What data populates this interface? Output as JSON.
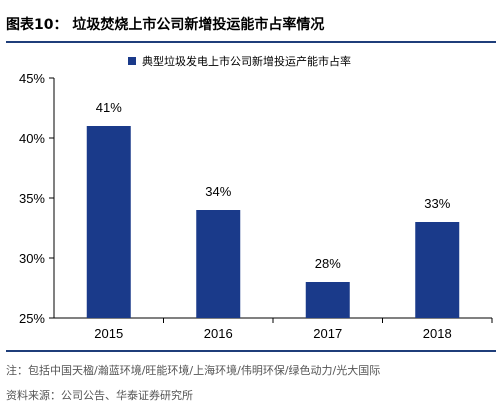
{
  "figure": {
    "title": "图表10：  垃圾焚烧上市公司新增投运能市占率情况",
    "note": "注：包括中国天楹/瀚蓝环境/旺能环境/上海环境/伟明环保/绿色动力/光大国际",
    "source": "资料来源：公司公告、华泰证券研究所"
  },
  "colors": {
    "bar": "#1a3a8a",
    "rule": "#1f3e7a",
    "axis": "#000000"
  },
  "chart_data": {
    "type": "bar",
    "title": "",
    "xlabel": "",
    "ylabel": "",
    "categories": [
      "2015",
      "2016",
      "2017",
      "2018"
    ],
    "series": [
      {
        "name": "典型垃圾发电上市公司新增投运产能市占率",
        "values": [
          41,
          34,
          28,
          33
        ],
        "data_labels": [
          "41%",
          "34%",
          "28%",
          "33%"
        ]
      }
    ],
    "ylim": [
      25,
      45
    ],
    "yticks": [
      25,
      30,
      35,
      40,
      45
    ],
    "ytick_labels": [
      "25%",
      "30%",
      "35%",
      "40%",
      "45%"
    ],
    "legend_position": "top-center",
    "grid": false
  }
}
